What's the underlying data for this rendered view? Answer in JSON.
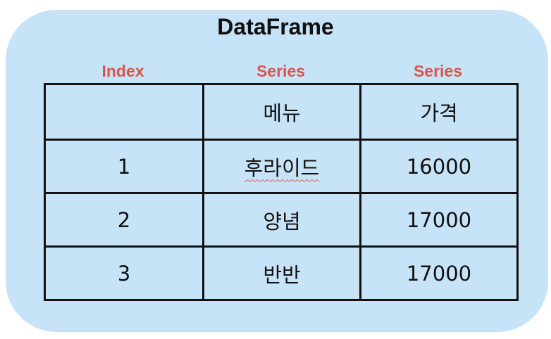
{
  "title": "DataFrame",
  "column_labels": [
    "Index",
    "Series",
    "Series"
  ],
  "header_row": [
    "",
    "메뉴",
    "가격"
  ],
  "rows": [
    [
      "1",
      "후라이드",
      "16000"
    ],
    [
      "2",
      "양념",
      "17000"
    ],
    [
      "3",
      "반반",
      "17000"
    ]
  ],
  "colors": {
    "panel": "#c7e3f8",
    "label": "#d9554a",
    "border": "#111111"
  }
}
